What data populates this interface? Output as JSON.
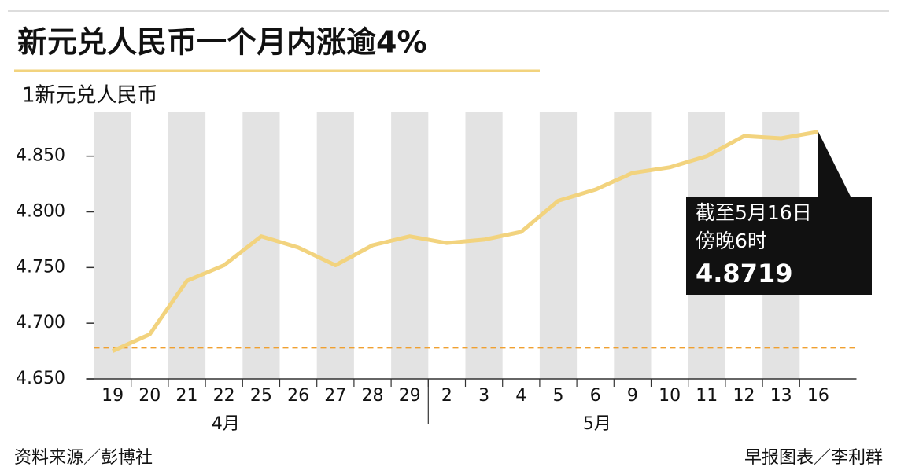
{
  "chart_data": {
    "type": "line",
    "title": "新元兑人民币一个月内涨逾4%",
    "y_label": "1新元兑人民币",
    "categories": [
      "19",
      "20",
      "21",
      "22",
      "25",
      "26",
      "27",
      "28",
      "29",
      "2",
      "3",
      "4",
      "5",
      "6",
      "9",
      "10",
      "11",
      "12",
      "13",
      "16"
    ],
    "months": [
      "4月",
      "5月"
    ],
    "series": [
      {
        "name": "新元兑人民币",
        "color": "#f2d37e",
        "values": [
          4.675,
          4.69,
          4.738,
          4.752,
          4.778,
          4.768,
          4.752,
          4.77,
          4.778,
          4.772,
          4.775,
          4.782,
          4.81,
          4.82,
          4.835,
          4.84,
          4.85,
          4.868,
          4.866,
          4.8719
        ]
      }
    ],
    "reference_line": {
      "value": 4.678,
      "color": "#f0a030"
    },
    "annotation": {
      "lines": [
        "截至5月16日",
        "傍晚6时"
      ],
      "value_label": "4.8719"
    },
    "ylim": [
      4.65,
      4.89
    ],
    "yticks": [
      {
        "value": 4.65,
        "label": "4.650"
      },
      {
        "value": 4.7,
        "label": "4.700"
      },
      {
        "value": 4.75,
        "label": "4.750"
      },
      {
        "value": 4.8,
        "label": "4.800"
      },
      {
        "value": 4.85,
        "label": "4.850"
      }
    ],
    "band_color": "#e3e3e3",
    "grid": false,
    "source": "资料来源／彭博社",
    "credit": "早报图表／李利群"
  }
}
